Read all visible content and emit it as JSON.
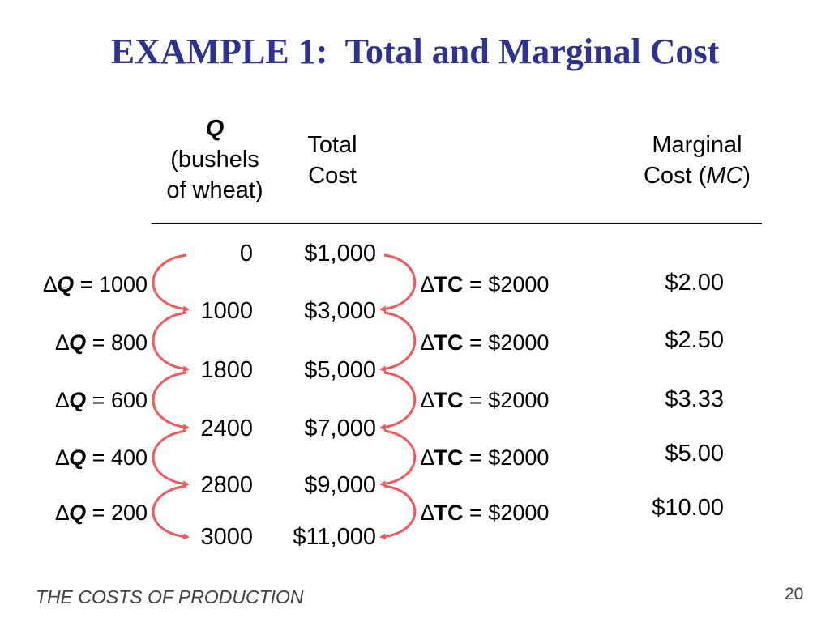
{
  "title": "EXAMPLE 1:  Total and Marginal Cost",
  "headers": {
    "q_symbol": "Q",
    "q_line2": "(bushels",
    "q_line3": "of wheat)",
    "tc_line1": "Total",
    "tc_line2": "Cost",
    "mc_line1": "Marginal",
    "mc_line2_prefix": "Cost (",
    "mc_symbol": "MC",
    "mc_line2_suffix": ")"
  },
  "rows": [
    {
      "q": "0",
      "tc": "$1,000"
    },
    {
      "q": "1000",
      "tc": "$3,000"
    },
    {
      "q": "1800",
      "tc": "$5,000"
    },
    {
      "q": "2400",
      "tc": "$7,000"
    },
    {
      "q": "2800",
      "tc": "$9,000"
    },
    {
      "q": "3000",
      "tc": "$11,000"
    }
  ],
  "delta_q": {
    "symbol": "∆",
    "letter": "Q",
    "items": [
      " = 1000",
      " = 800",
      " = 600",
      " = 400",
      " = 200"
    ]
  },
  "delta_tc": {
    "symbol": "∆",
    "letter": "TC",
    "items": [
      " = $2000",
      " = $2000",
      " = $2000",
      " = $2000",
      " = $2000"
    ]
  },
  "marginal_cost": [
    "$2.00",
    "$2.50",
    "$3.33",
    "$5.00",
    "$10.00"
  ],
  "footer": {
    "text": "THE COSTS OF PRODUCTION",
    "page_number": "20"
  },
  "colors": {
    "title": "#2e3192",
    "arrow": "#f05a5a",
    "footer": "#404040"
  }
}
